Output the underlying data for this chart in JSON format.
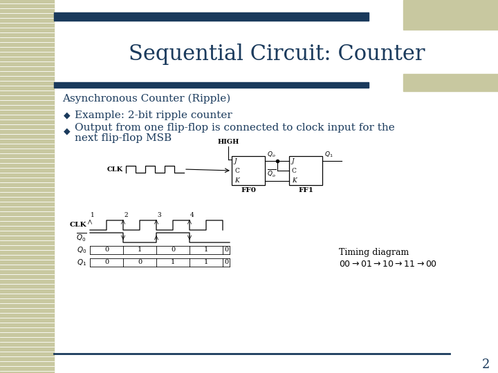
{
  "title": "Sequential Circuit: Counter",
  "title_color": "#1a3a5c",
  "title_fontsize": 22,
  "bg_color": "#ffffff",
  "left_stripe_color": "#c8c8a0",
  "top_bar_color": "#1a3a5c",
  "right_stripe_color": "#c8c8a0",
  "subtitle": "Asynchronous Counter (Ripple)",
  "subtitle_color": "#1a3a5c",
  "subtitle_fontsize": 11,
  "bullet_color": "#1a3a5c",
  "bullet_points": [
    "Example: 2-bit ripple counter",
    "Output from one flip-flop is connected to clock input for the next flip-flop MSB"
  ],
  "bullet_fontsize": 11,
  "page_number": "2",
  "page_number_color": "#1a3a5c"
}
